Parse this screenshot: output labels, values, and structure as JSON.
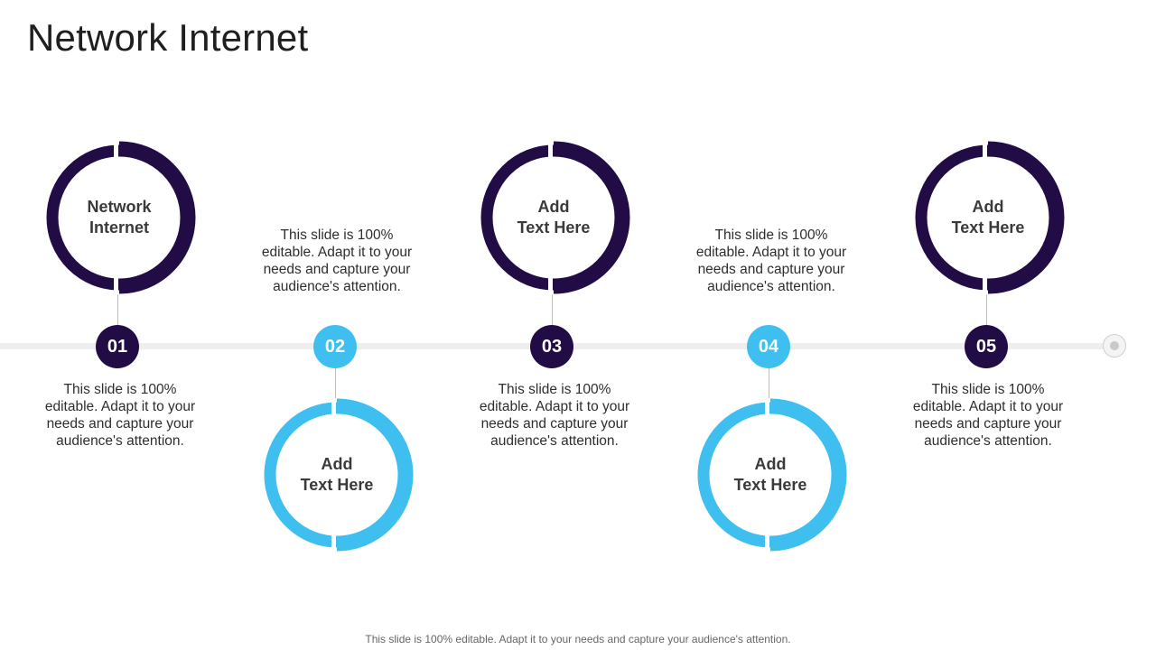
{
  "title": "Network Internet",
  "footer": "This slide is 100% editable. Adapt it to your needs and capture your audience's attention.",
  "colors": {
    "dark": "#220c45",
    "light": "#3fbff0",
    "track": "#eeeeee"
  },
  "steps": [
    {
      "number": "01",
      "circle_line1": "Network",
      "circle_line2": "Internet",
      "description": "This slide is 100% editable. Adapt it to your needs and capture your audience's attention.",
      "tone": "dark",
      "circle_position": "above"
    },
    {
      "number": "02",
      "circle_line1": "Add",
      "circle_line2": "Text Here",
      "description": "This slide is 100% editable. Adapt it to your needs and capture your audience's attention.",
      "tone": "light",
      "circle_position": "below"
    },
    {
      "number": "03",
      "circle_line1": "Add",
      "circle_line2": "Text Here",
      "description": "This slide is 100% editable. Adapt it to your needs and capture your audience's attention.",
      "tone": "dark",
      "circle_position": "above"
    },
    {
      "number": "04",
      "circle_line1": "Add",
      "circle_line2": "Text Here",
      "description": "This slide is 100% editable. Adapt it to your needs and capture your audience's attention.",
      "tone": "light",
      "circle_position": "below"
    },
    {
      "number": "05",
      "circle_line1": "Add",
      "circle_line2": "Text Here",
      "description": "This slide is 100% editable. Adapt it to your needs and capture your audience's attention.",
      "tone": "dark",
      "circle_position": "above"
    }
  ]
}
